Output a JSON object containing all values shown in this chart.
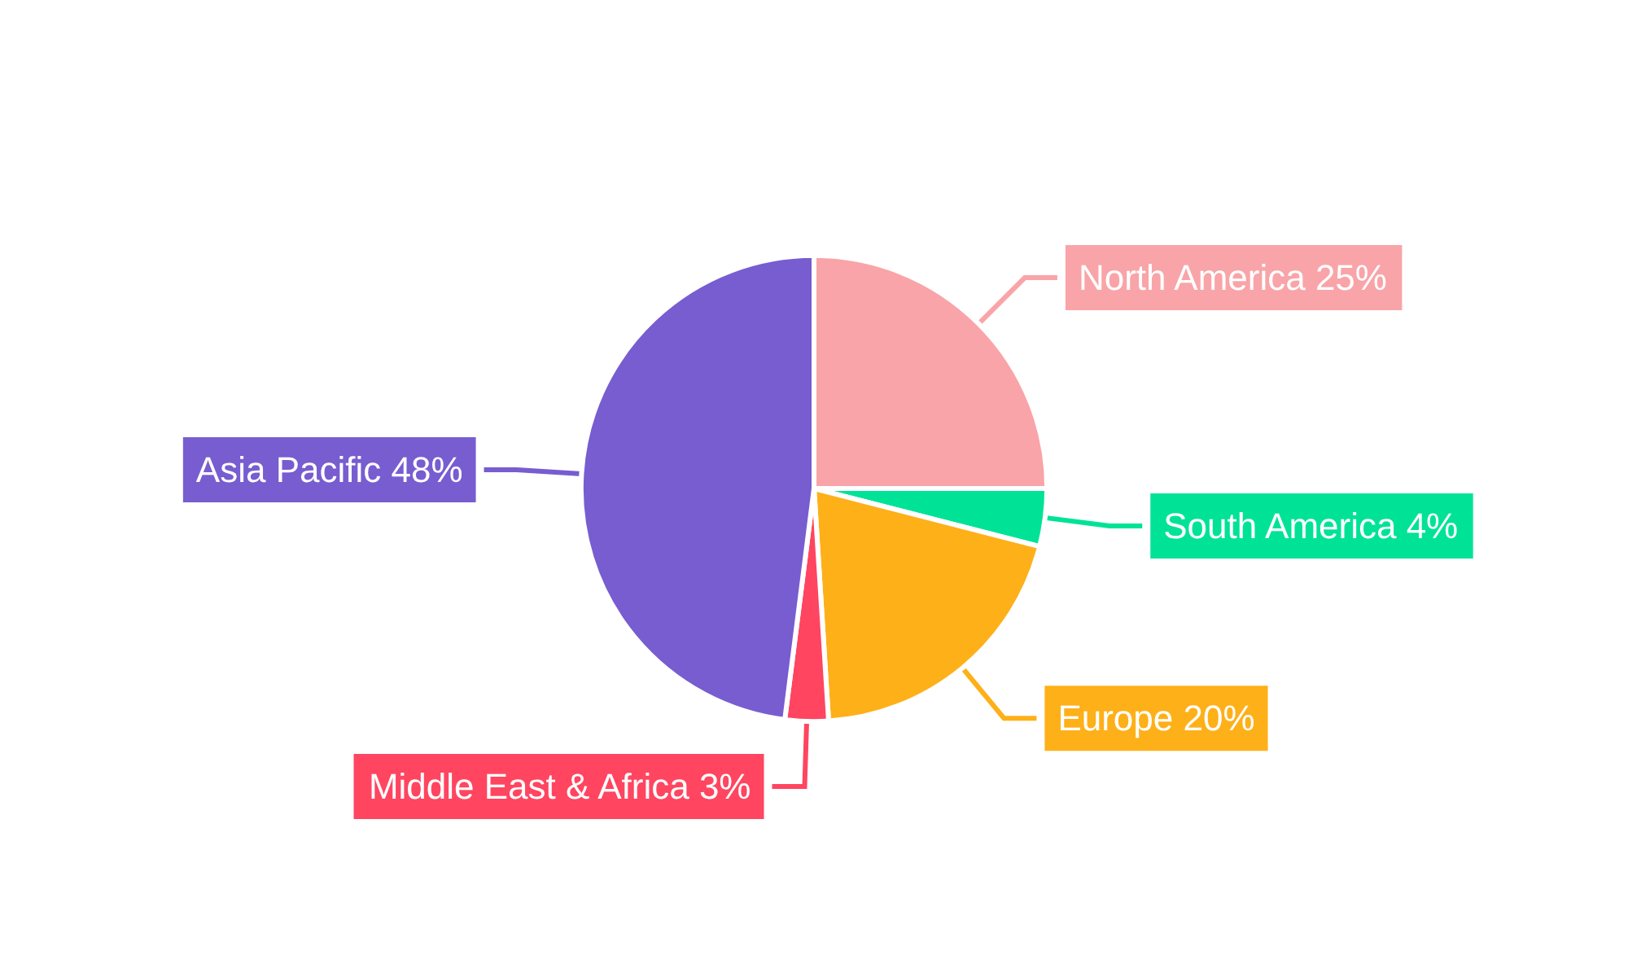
{
  "chart_data": {
    "type": "pie",
    "categories": [
      "North America",
      "South America",
      "Europe",
      "Middle East & Africa",
      "Asia Pacific"
    ],
    "values": [
      25,
      4,
      20,
      3,
      48
    ],
    "value_labels": [
      "25%",
      "4%",
      "20%",
      "3%",
      "48%"
    ],
    "colors": [
      "#f9a4a8",
      "#00e396",
      "#feb019",
      "#ff4560",
      "#775dd0"
    ],
    "legend": false
  }
}
